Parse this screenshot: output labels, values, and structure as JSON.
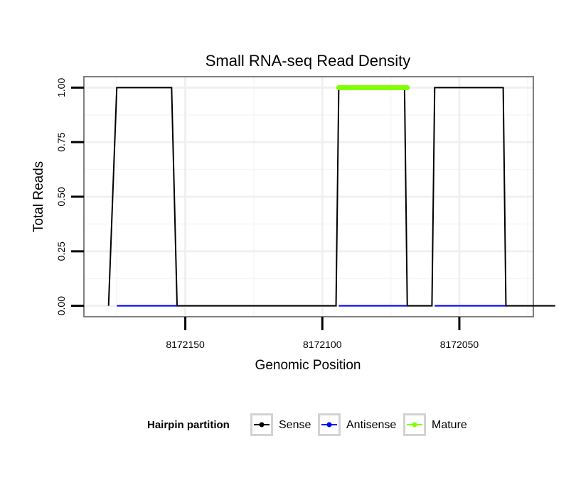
{
  "chart_data": {
    "type": "line",
    "title": "Small RNA-seq Read Density",
    "xlabel": "Genomic Position",
    "ylabel": "Total Reads",
    "x_reversed": true,
    "xlim": [
      8172187,
      8172023
    ],
    "ylim": [
      -0.05,
      1.05
    ],
    "x_ticks": [
      8172150,
      8172100,
      8172050
    ],
    "x_tick_labels": [
      "8172150",
      "8172100",
      "8172050"
    ],
    "y_ticks": [
      0,
      0.25,
      0.5,
      0.75,
      1.0
    ],
    "y_tick_labels": [
      "0.00",
      "0.25",
      "0.50",
      "0.75",
      "1.00"
    ],
    "grid": true,
    "legend": {
      "title": "Hairpin partition",
      "position": "bottom",
      "entries": [
        {
          "name": "Sense",
          "color": "#000000"
        },
        {
          "name": "Antisense",
          "color": "#0000ff"
        },
        {
          "name": "Mature",
          "color": "#7fff00"
        }
      ]
    },
    "series": [
      {
        "name": "Sense",
        "color": "#000000",
        "x": [
          8172178,
          8172175,
          8172155,
          8172153,
          8172095,
          8172094,
          8172070,
          8172069,
          8172060,
          8172059,
          8172034,
          8172033,
          8172015
        ],
        "y": [
          0,
          1,
          1,
          0,
          0,
          1,
          1,
          0,
          0,
          1,
          1,
          0,
          0
        ]
      },
      {
        "name": "Antisense",
        "color": "#0000ff",
        "x": [
          8172175,
          8172153,
          8172094,
          8172069,
          8172059,
          8172033
        ],
        "y": [
          0,
          0,
          0,
          0,
          0,
          0
        ],
        "segments": [
          [
            0,
            1
          ],
          [
            2,
            3
          ],
          [
            4,
            5
          ]
        ]
      },
      {
        "name": "Mature",
        "color": "#7fff00",
        "x": [
          8172094,
          8172069
        ],
        "y": [
          1,
          1
        ]
      }
    ]
  }
}
